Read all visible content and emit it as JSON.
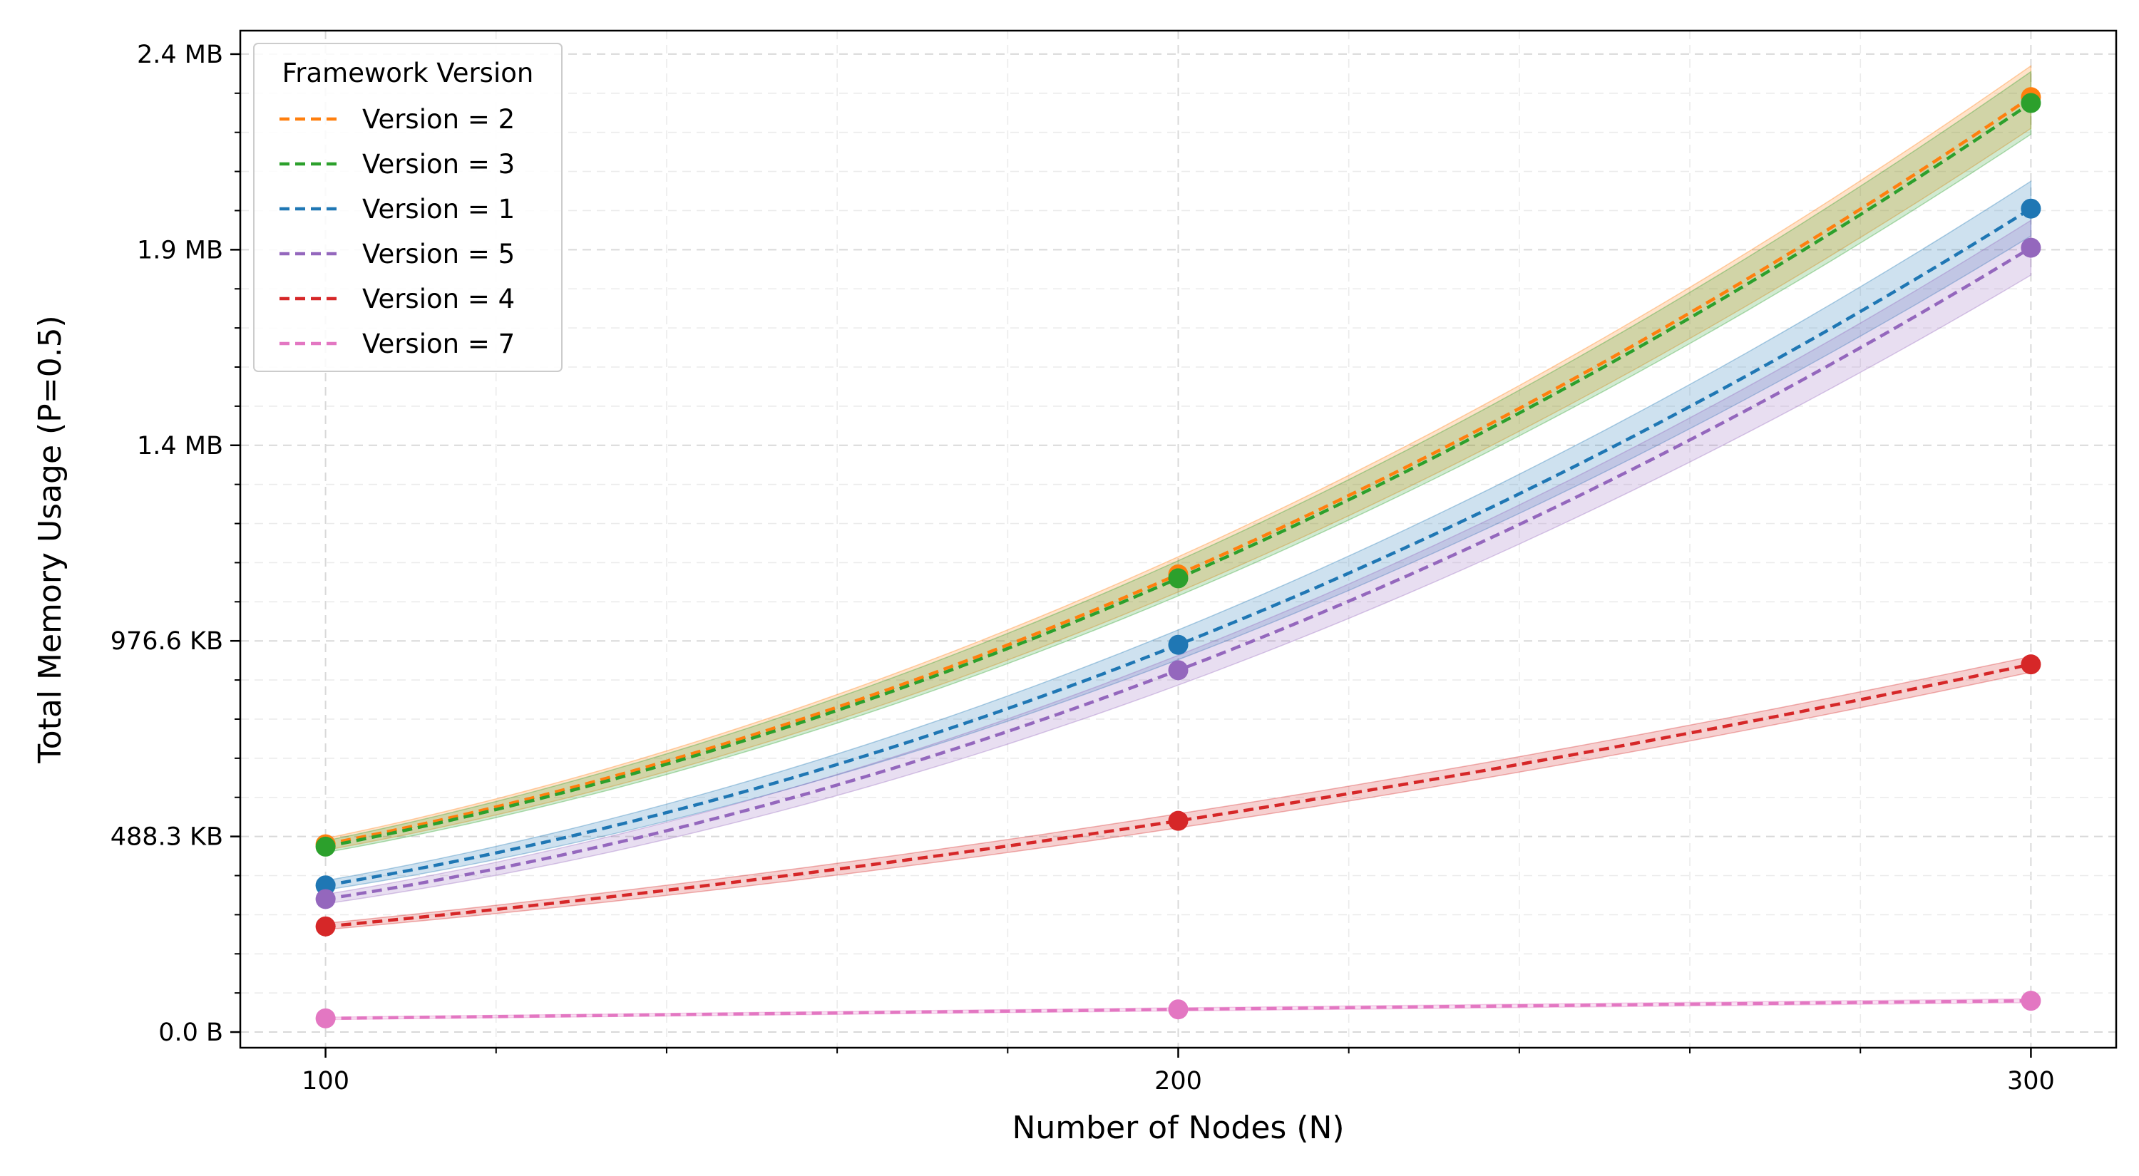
{
  "chart_data": {
    "type": "line",
    "xlabel": "Number of Nodes (N)",
    "ylabel": "Total Memory Usage (P=0.5)",
    "x": [
      100,
      200,
      300
    ],
    "xticks": [
      100,
      200,
      300
    ],
    "xlim": [
      90,
      310
    ],
    "ylim": [
      -40000,
      2560000
    ],
    "yticks": [
      {
        "value": 0,
        "label": "0.0 B"
      },
      {
        "value": 500000,
        "label": "488.3 KB"
      },
      {
        "value": 1000000,
        "label": "976.6 KB"
      },
      {
        "value": 1500000,
        "label": "1.4 MB"
      },
      {
        "value": 2000000,
        "label": "1.9 MB"
      },
      {
        "value": 2500000,
        "label": "2.4 MB"
      }
    ],
    "grid": true,
    "confidence_band": true,
    "legend": {
      "title": "Framework Version",
      "position": "top-left"
    },
    "series": [
      {
        "name": "Version = 2",
        "color": "#ff7f0e",
        "values": [
          480000,
          1170000,
          2390000
        ],
        "band": [
          15000,
          45000,
          80000
        ]
      },
      {
        "name": "Version = 3",
        "color": "#2ca02c",
        "values": [
          474000,
          1160000,
          2375000
        ],
        "band": [
          15000,
          45000,
          80000
        ]
      },
      {
        "name": "Version = 1",
        "color": "#1f77b4",
        "values": [
          375000,
          990000,
          2105000
        ],
        "band": [
          12000,
          38000,
          70000
        ]
      },
      {
        "name": "Version = 5",
        "color": "#9467bd",
        "values": [
          340000,
          925000,
          2005000
        ],
        "band": [
          12000,
          38000,
          70000
        ]
      },
      {
        "name": "Version = 4",
        "color": "#d62728",
        "values": [
          270000,
          540000,
          940000
        ],
        "band": [
          8000,
          18000,
          20000
        ]
      },
      {
        "name": "Version = 7",
        "color": "#e377c2",
        "values": [
          35000,
          58000,
          80000
        ],
        "band": [
          3000,
          4000,
          5000
        ]
      }
    ]
  }
}
